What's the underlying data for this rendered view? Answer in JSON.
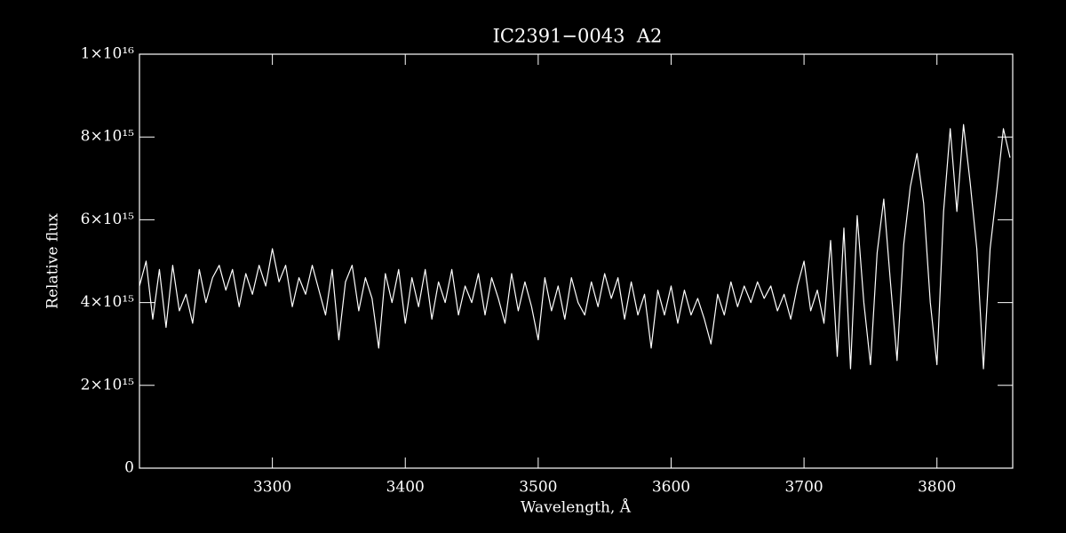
{
  "chart_data": {
    "type": "line",
    "title": "IC2391−0043  A2",
    "xlabel": "Wavelength, Å",
    "ylabel": "Relative flux",
    "xlim": [
      3200,
      3857
    ],
    "ylim": [
      0,
      1e+16
    ],
    "xticks": [
      3300,
      3400,
      3500,
      3600,
      3700,
      3800
    ],
    "yticks": [
      0,
      {
        "value": 2000000000000000.0,
        "label": "2×10¹⁵"
      },
      {
        "value": 4000000000000000.0,
        "label": "4×10¹⁵"
      },
      {
        "value": 6000000000000000.0,
        "label": "6×10¹⁵"
      },
      {
        "value": 8000000000000000.0,
        "label": "8×10¹⁵"
      },
      {
        "value": 1e+16,
        "label": "1×10¹⁶"
      }
    ],
    "color": "#ffffff",
    "x": [
      3200,
      3205,
      3210,
      3215,
      3220,
      3225,
      3230,
      3235,
      3240,
      3245,
      3250,
      3255,
      3260,
      3265,
      3270,
      3275,
      3280,
      3285,
      3290,
      3295,
      3300,
      3305,
      3310,
      3315,
      3320,
      3325,
      3330,
      3335,
      3340,
      3345,
      3350,
      3355,
      3360,
      3365,
      3370,
      3375,
      3380,
      3385,
      3390,
      3395,
      3400,
      3405,
      3410,
      3415,
      3420,
      3425,
      3430,
      3435,
      3440,
      3445,
      3450,
      3455,
      3460,
      3465,
      3470,
      3475,
      3480,
      3485,
      3490,
      3495,
      3500,
      3505,
      3510,
      3515,
      3520,
      3525,
      3530,
      3535,
      3540,
      3545,
      3550,
      3555,
      3560,
      3565,
      3570,
      3575,
      3580,
      3585,
      3590,
      3595,
      3600,
      3605,
      3610,
      3615,
      3620,
      3625,
      3630,
      3635,
      3640,
      3645,
      3650,
      3655,
      3660,
      3665,
      3670,
      3675,
      3680,
      3685,
      3690,
      3695,
      3700,
      3705,
      3710,
      3715,
      3720,
      3725,
      3730,
      3735,
      3740,
      3745,
      3750,
      3755,
      3760,
      3765,
      3770,
      3775,
      3780,
      3785,
      3790,
      3795,
      3800,
      3805,
      3810,
      3815,
      3820,
      3825,
      3830,
      3835,
      3840,
      3845,
      3850,
      3855
    ],
    "values": [
      4400000000000000.0,
      5000000000000000.0,
      3600000000000000.0,
      4800000000000000.0,
      3400000000000000.0,
      4900000000000000.0,
      3800000000000000.0,
      4200000000000000.0,
      3500000000000000.0,
      4800000000000000.0,
      4000000000000000.0,
      4600000000000000.0,
      4900000000000000.0,
      4300000000000000.0,
      4800000000000000.0,
      3900000000000000.0,
      4700000000000000.0,
      4200000000000000.0,
      4900000000000000.0,
      4400000000000000.0,
      5300000000000000.0,
      4500000000000000.0,
      4900000000000000.0,
      3900000000000000.0,
      4600000000000000.0,
      4200000000000000.0,
      4900000000000000.0,
      4300000000000000.0,
      3700000000000000.0,
      4800000000000000.0,
      3100000000000000.0,
      4500000000000000.0,
      4900000000000000.0,
      3800000000000000.0,
      4600000000000000.0,
      4100000000000000.0,
      2900000000000000.0,
      4700000000000000.0,
      4000000000000000.0,
      4800000000000000.0,
      3500000000000000.0,
      4600000000000000.0,
      3900000000000000.0,
      4800000000000000.0,
      3600000000000000.0,
      4500000000000000.0,
      4000000000000000.0,
      4800000000000000.0,
      3700000000000000.0,
      4400000000000000.0,
      4000000000000000.0,
      4700000000000000.0,
      3700000000000000.0,
      4600000000000000.0,
      4100000000000000.0,
      3500000000000000.0,
      4700000000000000.0,
      3800000000000000.0,
      4500000000000000.0,
      3900000000000000.0,
      3100000000000000.0,
      4600000000000000.0,
      3800000000000000.0,
      4400000000000000.0,
      3600000000000000.0,
      4600000000000000.0,
      4000000000000000.0,
      3700000000000000.0,
      4500000000000000.0,
      3900000000000000.0,
      4700000000000000.0,
      4100000000000000.0,
      4600000000000000.0,
      3600000000000000.0,
      4500000000000000.0,
      3700000000000000.0,
      4200000000000000.0,
      2900000000000000.0,
      4300000000000000.0,
      3700000000000000.0,
      4400000000000000.0,
      3500000000000000.0,
      4300000000000000.0,
      3700000000000000.0,
      4100000000000000.0,
      3600000000000000.0,
      3000000000000000.0,
      4200000000000000.0,
      3700000000000000.0,
      4500000000000000.0,
      3900000000000000.0,
      4400000000000000.0,
      4000000000000000.0,
      4500000000000000.0,
      4100000000000000.0,
      4400000000000000.0,
      3800000000000000.0,
      4200000000000000.0,
      3600000000000000.0,
      4400000000000000.0,
      5000000000000000.0,
      3800000000000000.0,
      4300000000000000.0,
      3500000000000000.0,
      5500000000000000.0,
      2700000000000000.0,
      5800000000000000.0,
      2400000000000000.0,
      6100000000000000.0,
      4000000000000000.0,
      2500000000000000.0,
      5200000000000000.0,
      6500000000000000.0,
      4500000000000000.0,
      2600000000000000.0,
      5400000000000000.0,
      6800000000000000.0,
      7600000000000000.0,
      6400000000000000.0,
      4000000000000000.0,
      2500000000000000.0,
      6200000000000000.0,
      8200000000000000.0,
      6200000000000000.0,
      8300000000000000.0,
      6900000000000000.0,
      5300000000000000.0,
      2400000000000000.0,
      5300000000000000.0,
      6700000000000000.0,
      8200000000000000.0,
      7500000000000000.0
    ]
  }
}
